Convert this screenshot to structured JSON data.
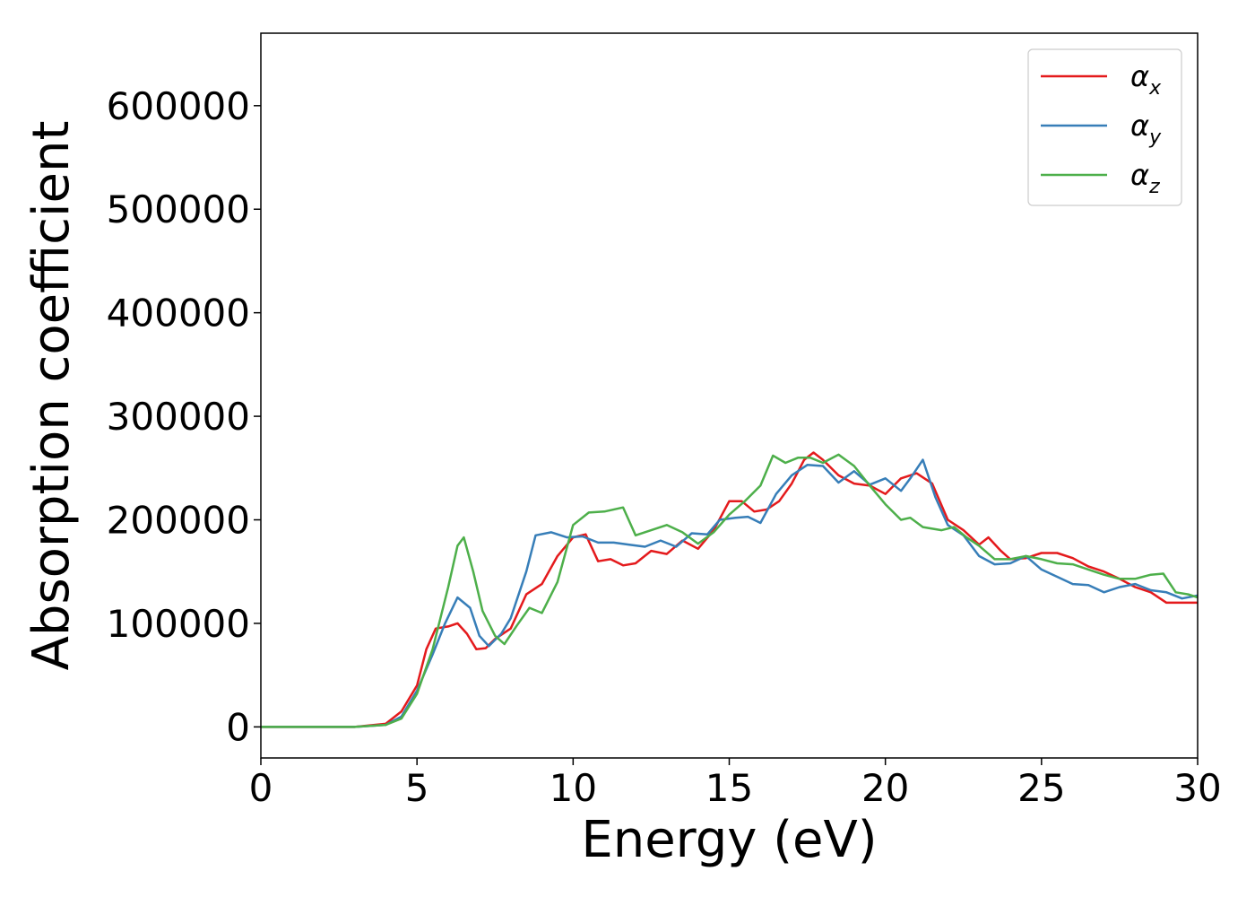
{
  "chart_data": {
    "type": "line",
    "title": "",
    "xlabel": "Energy (eV)",
    "ylabel": "Absorption coefficient",
    "xlim": [
      0,
      30
    ],
    "ylim": [
      -30000,
      670000
    ],
    "xticks": [
      0,
      5,
      10,
      15,
      20,
      25,
      30
    ],
    "xtick_labels": [
      "0",
      "5",
      "10",
      "15",
      "20",
      "25",
      "30"
    ],
    "yticks": [
      0,
      100000,
      200000,
      300000,
      400000,
      500000,
      600000
    ],
    "ytick_labels": [
      "0",
      "100000",
      "200000",
      "300000",
      "400000",
      "500000",
      "600000"
    ],
    "grid": false,
    "legend_position": "top-right",
    "colors": {
      "x": "#e41a1c",
      "y": "#377eb8",
      "z": "#4daf4a"
    },
    "series": [
      {
        "key": "x",
        "name": "α",
        "sub": "x",
        "points": [
          [
            0,
            0
          ],
          [
            3,
            0
          ],
          [
            4,
            3000
          ],
          [
            4.5,
            15000
          ],
          [
            5,
            40000
          ],
          [
            5.3,
            75000
          ],
          [
            5.6,
            95000
          ],
          [
            6,
            97000
          ],
          [
            6.3,
            100000
          ],
          [
            6.6,
            90000
          ],
          [
            6.9,
            75000
          ],
          [
            7.2,
            76000
          ],
          [
            7.5,
            85000
          ],
          [
            8,
            95000
          ],
          [
            8.5,
            128000
          ],
          [
            9,
            138000
          ],
          [
            9.5,
            165000
          ],
          [
            10,
            183000
          ],
          [
            10.4,
            186000
          ],
          [
            10.8,
            160000
          ],
          [
            11.2,
            162000
          ],
          [
            11.6,
            156000
          ],
          [
            12,
            158000
          ],
          [
            12.5,
            170000
          ],
          [
            13,
            167000
          ],
          [
            13.5,
            180000
          ],
          [
            14,
            172000
          ],
          [
            14.5,
            190000
          ],
          [
            15,
            218000
          ],
          [
            15.4,
            218000
          ],
          [
            15.8,
            208000
          ],
          [
            16.2,
            210000
          ],
          [
            16.6,
            218000
          ],
          [
            17,
            235000
          ],
          [
            17.4,
            258000
          ],
          [
            17.7,
            265000
          ],
          [
            18,
            258000
          ],
          [
            18.5,
            243000
          ],
          [
            19,
            235000
          ],
          [
            19.5,
            233000
          ],
          [
            20,
            225000
          ],
          [
            20.5,
            240000
          ],
          [
            21,
            245000
          ],
          [
            21.5,
            235000
          ],
          [
            22,
            200000
          ],
          [
            22.5,
            190000
          ],
          [
            23,
            176000
          ],
          [
            23.3,
            183000
          ],
          [
            23.7,
            170000
          ],
          [
            24,
            162000
          ],
          [
            24.5,
            163000
          ],
          [
            25,
            168000
          ],
          [
            25.5,
            168000
          ],
          [
            26,
            163000
          ],
          [
            26.5,
            155000
          ],
          [
            27,
            150000
          ],
          [
            27.5,
            143000
          ],
          [
            28,
            135000
          ],
          [
            28.5,
            130000
          ],
          [
            29,
            120000
          ],
          [
            29.5,
            120000
          ],
          [
            30,
            120000
          ]
        ]
      },
      {
        "key": "y",
        "name": "α",
        "sub": "y",
        "points": [
          [
            0,
            0
          ],
          [
            3,
            0
          ],
          [
            4,
            2000
          ],
          [
            4.5,
            10000
          ],
          [
            5,
            35000
          ],
          [
            5.5,
            70000
          ],
          [
            5.9,
            100000
          ],
          [
            6.3,
            125000
          ],
          [
            6.7,
            115000
          ],
          [
            7,
            88000
          ],
          [
            7.3,
            78000
          ],
          [
            7.7,
            90000
          ],
          [
            8,
            105000
          ],
          [
            8.5,
            150000
          ],
          [
            8.8,
            185000
          ],
          [
            9.3,
            188000
          ],
          [
            9.8,
            183000
          ],
          [
            10.3,
            184000
          ],
          [
            10.8,
            178000
          ],
          [
            11.3,
            178000
          ],
          [
            11.8,
            176000
          ],
          [
            12.3,
            174000
          ],
          [
            12.8,
            180000
          ],
          [
            13.3,
            174000
          ],
          [
            13.8,
            187000
          ],
          [
            14.3,
            186000
          ],
          [
            14.7,
            200000
          ],
          [
            15.2,
            202000
          ],
          [
            15.6,
            203000
          ],
          [
            16,
            197000
          ],
          [
            16.5,
            225000
          ],
          [
            17,
            243000
          ],
          [
            17.5,
            253000
          ],
          [
            18,
            252000
          ],
          [
            18.5,
            236000
          ],
          [
            19,
            247000
          ],
          [
            19.5,
            234000
          ],
          [
            20,
            240000
          ],
          [
            20.5,
            228000
          ],
          [
            20.8,
            240000
          ],
          [
            21.2,
            258000
          ],
          [
            21.6,
            222000
          ],
          [
            22,
            195000
          ],
          [
            22.5,
            185000
          ],
          [
            23,
            165000
          ],
          [
            23.5,
            157000
          ],
          [
            24,
            158000
          ],
          [
            24.5,
            165000
          ],
          [
            25,
            152000
          ],
          [
            25.5,
            145000
          ],
          [
            26,
            138000
          ],
          [
            26.5,
            137000
          ],
          [
            27,
            130000
          ],
          [
            27.5,
            135000
          ],
          [
            28,
            138000
          ],
          [
            28.5,
            132000
          ],
          [
            29,
            130000
          ],
          [
            29.5,
            124000
          ],
          [
            30,
            127000
          ]
        ]
      },
      {
        "key": "z",
        "name": "α",
        "sub": "z",
        "points": [
          [
            0,
            0
          ],
          [
            3,
            0
          ],
          [
            4,
            2000
          ],
          [
            4.5,
            8000
          ],
          [
            5,
            32000
          ],
          [
            5.5,
            75000
          ],
          [
            6,
            135000
          ],
          [
            6.3,
            175000
          ],
          [
            6.5,
            183000
          ],
          [
            6.8,
            150000
          ],
          [
            7.1,
            112000
          ],
          [
            7.5,
            88000
          ],
          [
            7.8,
            80000
          ],
          [
            8.2,
            98000
          ],
          [
            8.6,
            115000
          ],
          [
            9,
            110000
          ],
          [
            9.5,
            140000
          ],
          [
            10,
            195000
          ],
          [
            10.5,
            207000
          ],
          [
            11,
            208000
          ],
          [
            11.6,
            212000
          ],
          [
            12,
            185000
          ],
          [
            12.5,
            190000
          ],
          [
            13,
            195000
          ],
          [
            13.5,
            188000
          ],
          [
            14,
            177000
          ],
          [
            14.5,
            188000
          ],
          [
            15,
            205000
          ],
          [
            15.5,
            218000
          ],
          [
            16,
            233000
          ],
          [
            16.4,
            262000
          ],
          [
            16.8,
            255000
          ],
          [
            17.2,
            260000
          ],
          [
            17.6,
            260000
          ],
          [
            18,
            255000
          ],
          [
            18.5,
            263000
          ],
          [
            19,
            252000
          ],
          [
            19.5,
            233000
          ],
          [
            20,
            215000
          ],
          [
            20.5,
            200000
          ],
          [
            20.8,
            202000
          ],
          [
            21.2,
            193000
          ],
          [
            21.8,
            190000
          ],
          [
            22.2,
            193000
          ],
          [
            22.6,
            183000
          ],
          [
            23,
            175000
          ],
          [
            23.5,
            162000
          ],
          [
            24,
            162000
          ],
          [
            24.5,
            165000
          ],
          [
            25,
            162000
          ],
          [
            25.5,
            158000
          ],
          [
            26,
            157000
          ],
          [
            26.5,
            152000
          ],
          [
            27,
            147000
          ],
          [
            27.5,
            143000
          ],
          [
            28,
            143000
          ],
          [
            28.5,
            147000
          ],
          [
            28.9,
            148000
          ],
          [
            29.3,
            130000
          ],
          [
            29.7,
            128000
          ],
          [
            30,
            125000
          ]
        ]
      }
    ]
  }
}
